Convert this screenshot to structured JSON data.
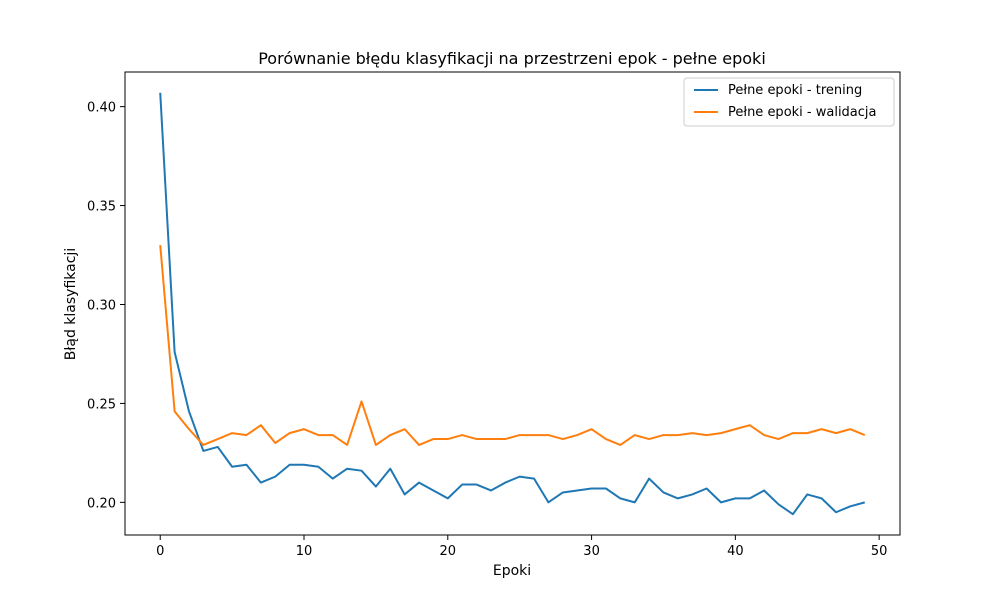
{
  "chart_data": {
    "type": "line",
    "title": "Porównanie błędu klasyfikacji na przestrzeni epok - pełne epoki",
    "xlabel": "Epoki",
    "ylabel": "Błąd klasyfikacji",
    "xlim": [
      -2.45,
      51.45
    ],
    "ylim": [
      0.1835,
      0.4175
    ],
    "xticks": [
      0,
      10,
      20,
      30,
      40,
      50
    ],
    "xtick_labels": [
      "0",
      "10",
      "20",
      "30",
      "40",
      "50"
    ],
    "yticks": [
      0.2,
      0.25,
      0.3,
      0.35,
      0.4
    ],
    "ytick_labels": [
      "0.20",
      "0.25",
      "0.30",
      "0.35",
      "0.40"
    ],
    "grid": false,
    "legend_position": "top-right",
    "x": [
      0,
      1,
      2,
      3,
      4,
      5,
      6,
      7,
      8,
      9,
      10,
      11,
      12,
      13,
      14,
      15,
      16,
      17,
      18,
      19,
      20,
      21,
      22,
      23,
      24,
      25,
      26,
      27,
      28,
      29,
      30,
      31,
      32,
      33,
      34,
      35,
      36,
      37,
      38,
      39,
      40,
      41,
      42,
      43,
      44,
      45,
      46,
      47,
      48,
      49
    ],
    "series": [
      {
        "name": "Pełne epoki - trening",
        "color": "#1f77b4",
        "values": [
          0.407,
          0.276,
          0.246,
          0.226,
          0.228,
          0.218,
          0.219,
          0.21,
          0.213,
          0.219,
          0.219,
          0.218,
          0.212,
          0.217,
          0.216,
          0.208,
          0.217,
          0.204,
          0.21,
          0.206,
          0.202,
          0.209,
          0.209,
          0.206,
          0.21,
          0.213,
          0.212,
          0.2,
          0.205,
          0.206,
          0.207,
          0.207,
          0.202,
          0.2,
          0.212,
          0.205,
          0.202,
          0.204,
          0.207,
          0.2,
          0.202,
          0.202,
          0.206,
          0.199,
          0.194,
          0.204,
          0.202,
          0.195,
          0.198,
          0.2
        ]
      },
      {
        "name": "Pełne epoki - walidacja",
        "color": "#ff7f0e",
        "values": [
          0.33,
          0.246,
          0.237,
          0.229,
          0.232,
          0.235,
          0.234,
          0.239,
          0.23,
          0.235,
          0.237,
          0.234,
          0.234,
          0.229,
          0.251,
          0.229,
          0.234,
          0.237,
          0.229,
          0.232,
          0.232,
          0.234,
          0.232,
          0.232,
          0.232,
          0.234,
          0.234,
          0.234,
          0.232,
          0.234,
          0.237,
          0.232,
          0.229,
          0.234,
          0.232,
          0.234,
          0.234,
          0.235,
          0.234,
          0.235,
          0.237,
          0.239,
          0.234,
          0.232,
          0.235,
          0.235,
          0.237,
          0.235,
          0.237,
          0.234
        ]
      }
    ]
  }
}
